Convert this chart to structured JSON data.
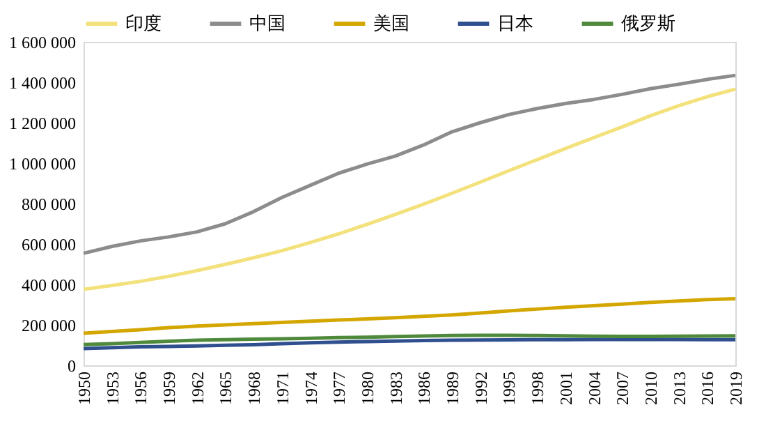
{
  "chart_data": {
    "type": "line",
    "legend": "top",
    "grid": false,
    "x": [
      1950,
      1953,
      1956,
      1959,
      1962,
      1965,
      1968,
      1971,
      1974,
      1977,
      1980,
      1983,
      1986,
      1989,
      1992,
      1995,
      1998,
      2001,
      2004,
      2007,
      2010,
      2013,
      2016,
      2019
    ],
    "xlim": [
      1950,
      2019
    ],
    "xticks": [
      1950,
      1953,
      1956,
      1959,
      1962,
      1965,
      1968,
      1971,
      1974,
      1977,
      1980,
      1983,
      1986,
      1989,
      1992,
      1995,
      1998,
      2001,
      2004,
      2007,
      2010,
      2013,
      2016,
      2019
    ],
    "ylim": [
      0,
      1600000
    ],
    "yticks": [
      0,
      {
        "value": 200000,
        "label": "200 000"
      },
      {
        "value": 400000,
        "label": "400 000"
      },
      {
        "value": 600000,
        "label": "600 000"
      },
      {
        "value": 800000,
        "label": "800 000"
      },
      {
        "value": 1000000,
        "label": "1 000 000"
      },
      {
        "value": 1200000,
        "label": "1 200 000"
      },
      {
        "value": 1400000,
        "label": "1 400 000"
      },
      {
        "value": 1600000,
        "label": "1 600 000"
      }
    ],
    "series": [
      {
        "name": "印度",
        "color": "#f3e17c",
        "values": [
          376000,
          395000,
          415000,
          440000,
          468000,
          499000,
          532000,
          567000,
          607000,
          650000,
          697000,
          746000,
          797000,
          851000,
          906000,
          962000,
          1017000,
          1072000,
          1126000,
          1179000,
          1234000,
          1284000,
          1328000,
          1366000
        ]
      },
      {
        "name": "中国",
        "color": "#8c8c8c",
        "values": [
          554000,
          588000,
          615000,
          635000,
          660000,
          700000,
          760000,
          830000,
          890000,
          950000,
          995000,
          1035000,
          1090000,
          1155000,
          1200000,
          1240000,
          1270000,
          1295000,
          1315000,
          1340000,
          1368000,
          1390000,
          1414000,
          1434000
        ]
      },
      {
        "name": "美国",
        "color": "#d4a600",
        "values": [
          159000,
          167000,
          176000,
          186000,
          194000,
          200000,
          206000,
          212000,
          218000,
          224000,
          229000,
          235000,
          242000,
          249000,
          259000,
          269000,
          278000,
          287000,
          295000,
          303000,
          311000,
          318000,
          325000,
          329000
        ]
      },
      {
        "name": "日本",
        "color": "#2f4f8f",
        "values": [
          83000,
          87000,
          91000,
          93000,
          96000,
          99000,
          102000,
          107000,
          111000,
          115000,
          117000,
          120000,
          122000,
          124000,
          125000,
          126000,
          127000,
          127000,
          128000,
          128000,
          128000,
          128000,
          127000,
          127000
        ]
      },
      {
        "name": "俄罗斯",
        "color": "#4f8a3c",
        "values": [
          103000,
          107000,
          113000,
          119000,
          124000,
          127000,
          129000,
          131000,
          134000,
          137000,
          139000,
          142000,
          145000,
          147000,
          148000,
          148000,
          147000,
          146000,
          144000,
          143000,
          143000,
          144000,
          145000,
          146000
        ]
      }
    ]
  }
}
